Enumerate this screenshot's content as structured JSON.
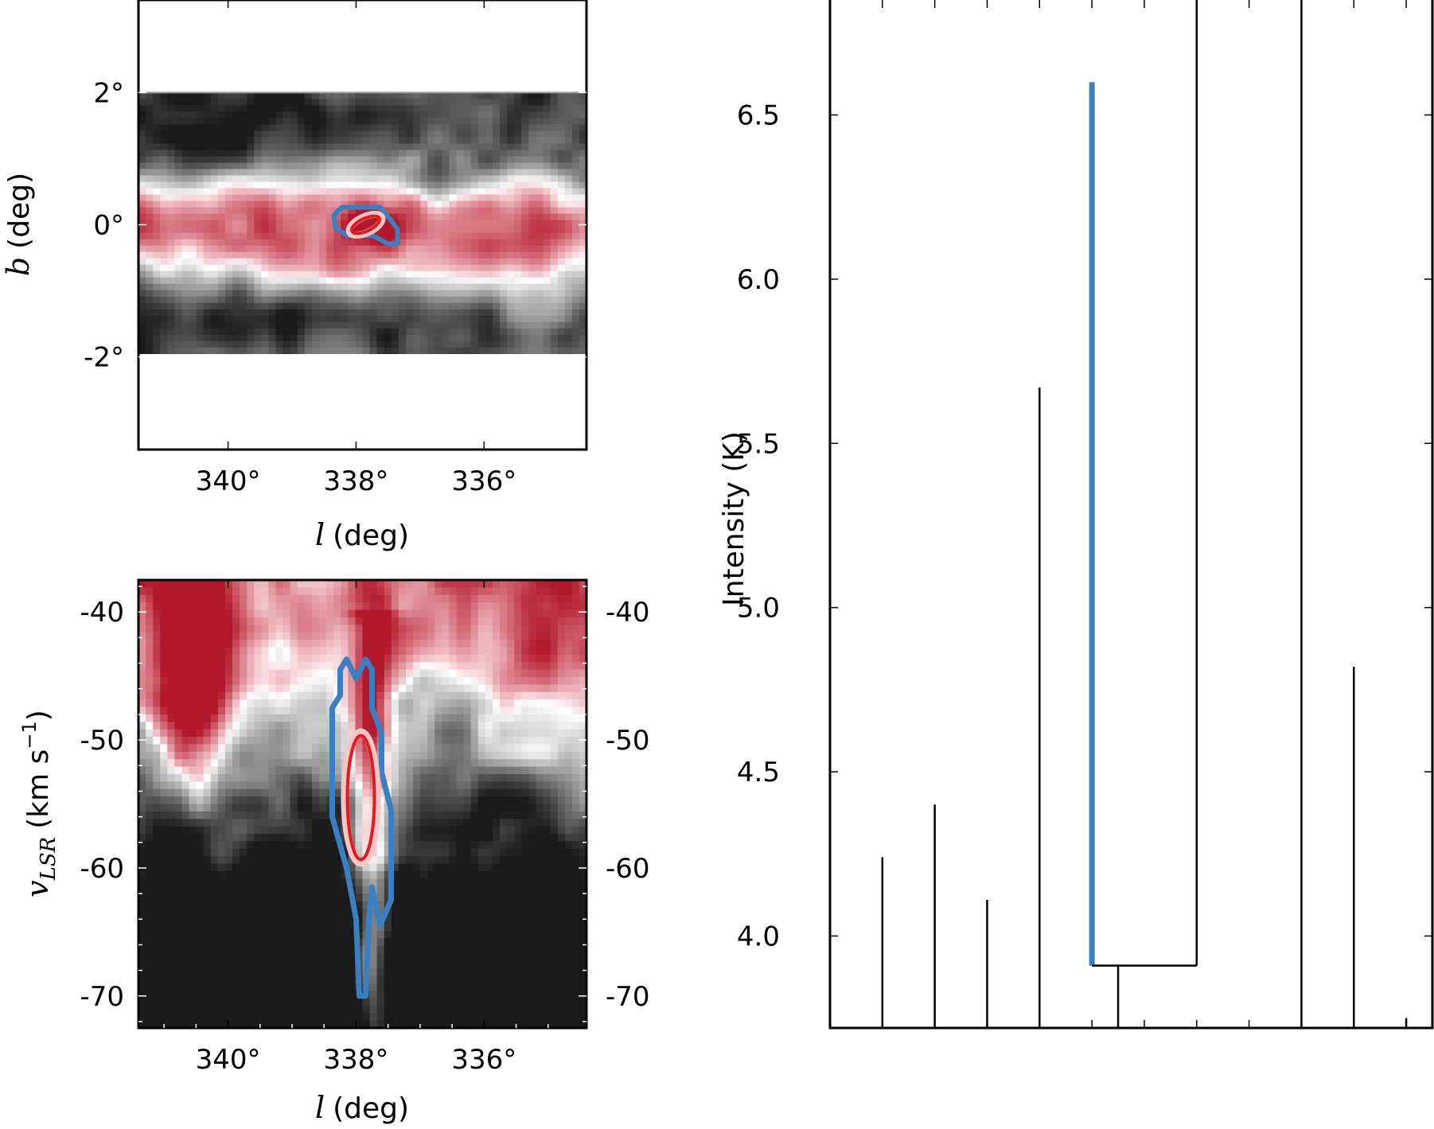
{
  "chart_data": [
    {
      "panel": "lb-map",
      "type": "heatmap",
      "title": "",
      "xlabel_var": "l",
      "xlabel_unit": "(deg)",
      "ylabel_var": "b",
      "ylabel_unit": "(deg)",
      "xlim": [
        341.4,
        334.4
      ],
      "ylim": [
        -3.4,
        3.4
      ],
      "data_extent": {
        "b": [
          -2.05,
          2.0
        ]
      },
      "xticks": [
        {
          "value": 340,
          "label": "340°"
        },
        {
          "value": 338,
          "label": "338°"
        },
        {
          "value": 336,
          "label": "336°"
        }
      ],
      "yticks": [
        {
          "value": 2,
          "label": "2°"
        },
        {
          "value": 0,
          "label": "0°"
        },
        {
          "value": -2,
          "label": "-2°"
        }
      ],
      "colormap": [
        "#1a1a1a",
        "#ffffff",
        "#b2182b"
      ],
      "contours": [
        {
          "color": "#3a7fc1",
          "role": "outer"
        },
        {
          "color": "#f4c6c6",
          "role": "halo"
        },
        {
          "color": "#e31a1c",
          "role": "inner"
        }
      ],
      "highlight_center": {
        "l": 337.85,
        "b": 0.0
      }
    },
    {
      "panel": "lv-diagram",
      "type": "heatmap",
      "title": "",
      "xlabel_var": "l",
      "xlabel_unit": "(deg)",
      "ylabel_var": "v",
      "ylabel_sub": "LSR",
      "ylabel_unit_pre": "(km s",
      "ylabel_unit_sup": "−1",
      "ylabel_unit_post": ")",
      "xlim": [
        341.4,
        334.4
      ],
      "ylim": [
        -72.5,
        -37.5
      ],
      "xticks": [
        {
          "value": 340,
          "label": "340°"
        },
        {
          "value": 338,
          "label": "338°"
        },
        {
          "value": 336,
          "label": "336°"
        }
      ],
      "yticks": [
        {
          "value": -40,
          "label": "-40"
        },
        {
          "value": -50,
          "label": "-50"
        },
        {
          "value": -60,
          "label": "-60"
        },
        {
          "value": -70,
          "label": "-70"
        }
      ],
      "highlight_center": {
        "l": 337.9,
        "v": -54.5
      }
    },
    {
      "panel": "dendrogram",
      "type": "dendrogram",
      "title": "",
      "ylabel": "Intensity (K)",
      "ylim": [
        3.72,
        6.85
      ],
      "yticks": [
        {
          "value": 4.0,
          "label": "4.0"
        },
        {
          "value": 4.5,
          "label": "4.5"
        },
        {
          "value": 5.0,
          "label": "5.0"
        },
        {
          "value": 5.5,
          "label": "5.5"
        },
        {
          "value": 6.0,
          "label": "6.0"
        },
        {
          "value": 6.5,
          "label": "6.5"
        }
      ],
      "leaves": [
        {
          "x": 1,
          "top": 4.24,
          "highlight": false
        },
        {
          "x": 2,
          "top": 4.4,
          "highlight": false
        },
        {
          "x": 3,
          "top": 4.11,
          "highlight": false
        },
        {
          "x": 4,
          "top": 5.67,
          "highlight": false
        },
        {
          "x": 5,
          "top": 6.6,
          "bottom": 3.91,
          "highlight": true
        },
        {
          "x": 7,
          "top": 6.9,
          "bottom": 3.91,
          "highlight": false
        },
        {
          "x": 9,
          "top": 6.9,
          "highlight": false
        },
        {
          "x": 10,
          "top": 4.82,
          "highlight": false
        },
        {
          "x": 11,
          "top": 3.75,
          "highlight": false
        }
      ],
      "branches": [
        {
          "x": 5.5,
          "top": 3.91,
          "children_x": [
            5,
            7
          ]
        }
      ],
      "xlim": [
        0,
        10.0
      ]
    }
  ],
  "colors": {
    "highlight_blue": "#3a7fc1",
    "contour_red": "#e31a1c",
    "dark_red": "#b2182b",
    "black": "#000000"
  }
}
